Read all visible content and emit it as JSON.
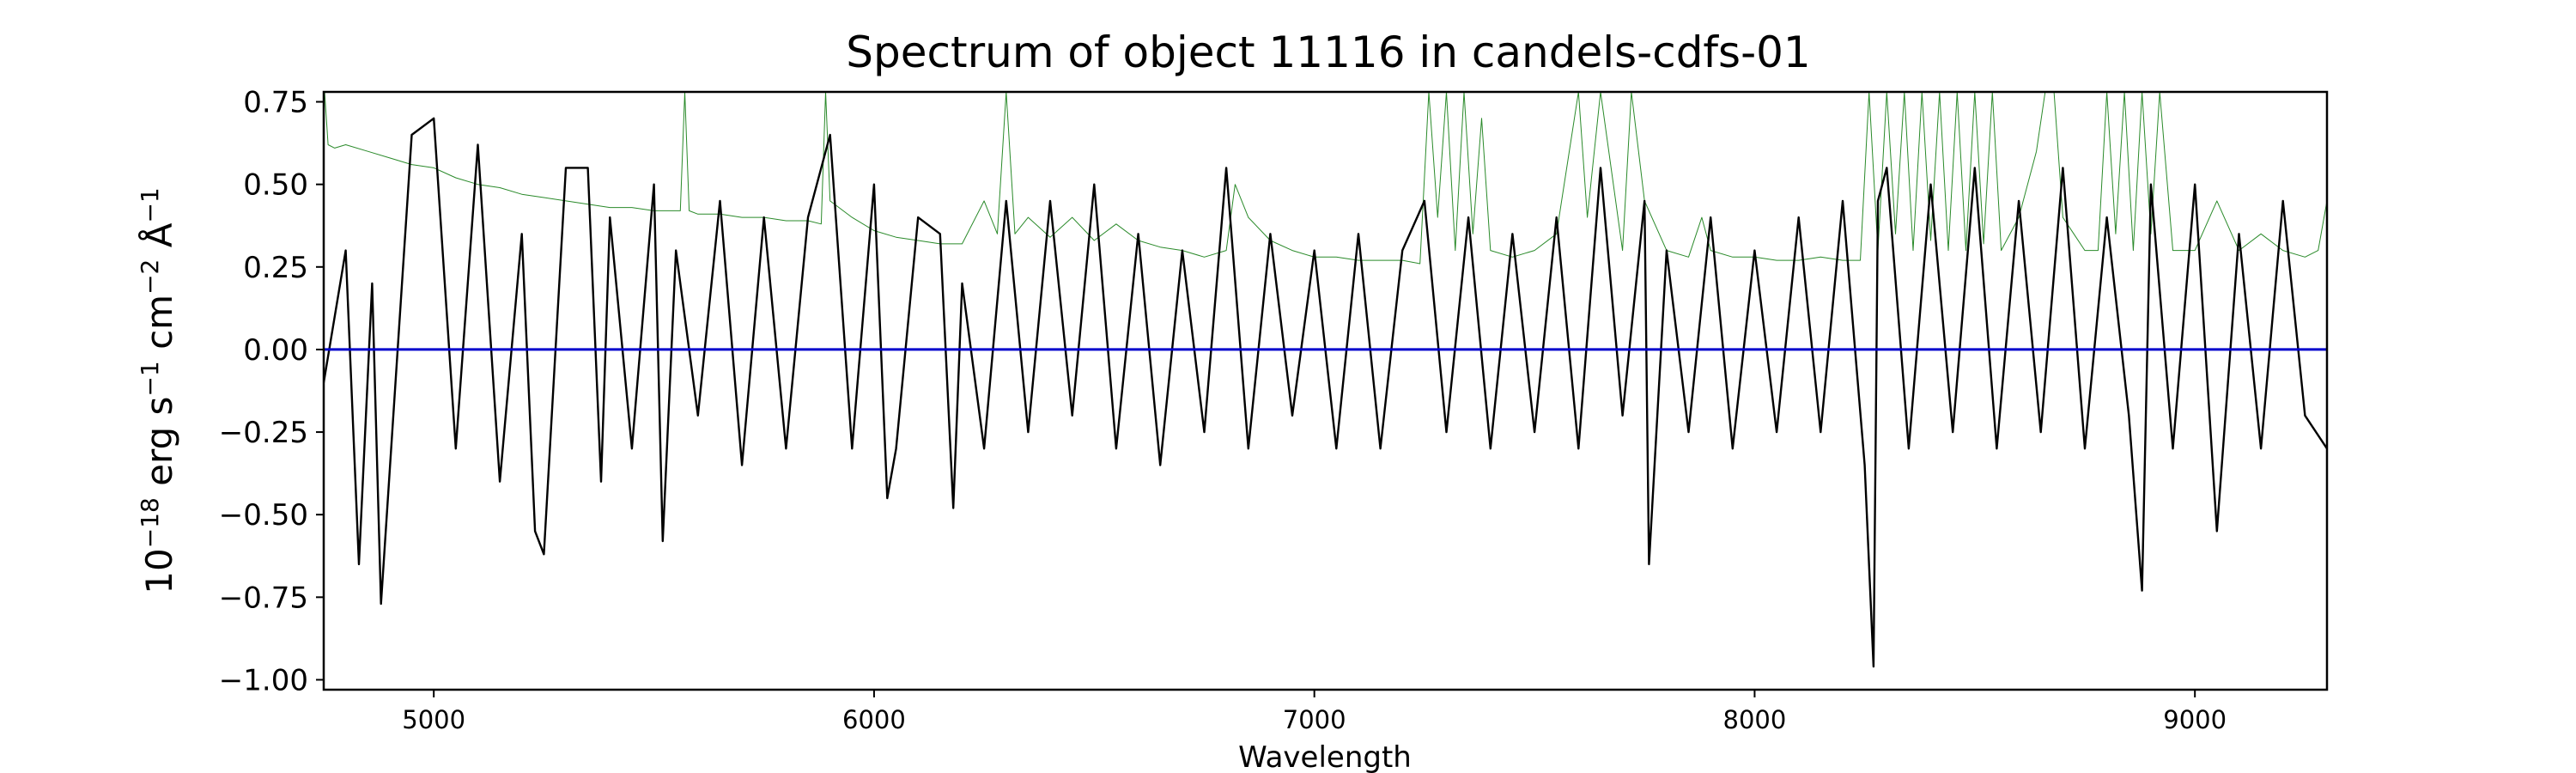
{
  "chart_data": {
    "type": "line",
    "title": "Spectrum of object 11116 in candels-cdfs-01",
    "xlabel": "Wavelength",
    "ylabel": {
      "base": "10",
      "exp1": "−18",
      "unit1": " erg s",
      "exp2": "−1",
      "unit2": " cm",
      "exp3": "−2",
      "unit3": " Å",
      "exp4": "−1"
    },
    "xlim": [
      4750,
      9300
    ],
    "ylim": [
      -1.03,
      0.78
    ],
    "x_ticks": [
      5000,
      6000,
      7000,
      8000,
      9000
    ],
    "x_tick_labels": [
      "5000",
      "6000",
      "7000",
      "8000",
      "9000"
    ],
    "y_ticks": [
      0.75,
      0.5,
      0.25,
      0.0,
      -0.25,
      -0.5,
      -0.75,
      -1.0
    ],
    "y_tick_labels": [
      "0.75",
      "0.50",
      "0.25",
      "0.00",
      "−0.25",
      "−0.50",
      "−0.75",
      "−1.00"
    ],
    "grid": false,
    "series": [
      {
        "color": "#2a8a2a",
        "line_width": 1,
        "x": [
          4750,
          4760,
          4775,
          4800,
          4850,
          4900,
          4950,
          5000,
          5050,
          5100,
          5150,
          5200,
          5250,
          5300,
          5350,
          5400,
          5450,
          5500,
          5560,
          5570,
          5580,
          5600,
          5650,
          5700,
          5750,
          5800,
          5850,
          5880,
          5890,
          5900,
          5950,
          6000,
          6050,
          6100,
          6150,
          6200,
          6250,
          6280,
          6300,
          6320,
          6350,
          6400,
          6450,
          6500,
          6550,
          6600,
          6650,
          6700,
          6750,
          6800,
          6820,
          6850,
          6900,
          6950,
          7000,
          7050,
          7100,
          7150,
          7200,
          7240,
          7260,
          7280,
          7300,
          7320,
          7340,
          7360,
          7380,
          7400,
          7450,
          7500,
          7550,
          7600,
          7620,
          7650,
          7700,
          7720,
          7750,
          7800,
          7850,
          7880,
          7900,
          7950,
          8000,
          8050,
          8100,
          8150,
          8200,
          8240,
          8260,
          8280,
          8300,
          8320,
          8340,
          8360,
          8380,
          8400,
          8420,
          8440,
          8460,
          8480,
          8500,
          8520,
          8540,
          8560,
          8600,
          8640,
          8660,
          8680,
          8700,
          8750,
          8780,
          8800,
          8820,
          8840,
          8860,
          8880,
          8900,
          8920,
          8950,
          9000,
          9050,
          9100,
          9150,
          9200,
          9250,
          9280,
          9300
        ],
        "y": [
          0.82,
          0.62,
          0.61,
          0.62,
          0.6,
          0.58,
          0.56,
          0.55,
          0.52,
          0.5,
          0.49,
          0.47,
          0.46,
          0.45,
          0.44,
          0.43,
          0.43,
          0.42,
          0.42,
          0.78,
          0.42,
          0.41,
          0.41,
          0.4,
          0.4,
          0.39,
          0.39,
          0.38,
          0.78,
          0.45,
          0.4,
          0.36,
          0.34,
          0.33,
          0.32,
          0.32,
          0.45,
          0.35,
          0.78,
          0.35,
          0.4,
          0.34,
          0.4,
          0.33,
          0.38,
          0.33,
          0.31,
          0.3,
          0.28,
          0.3,
          0.5,
          0.4,
          0.33,
          0.3,
          0.28,
          0.28,
          0.27,
          0.27,
          0.27,
          0.26,
          0.78,
          0.4,
          0.78,
          0.3,
          0.78,
          0.35,
          0.7,
          0.3,
          0.28,
          0.3,
          0.35,
          0.78,
          0.4,
          0.78,
          0.3,
          0.78,
          0.45,
          0.3,
          0.28,
          0.4,
          0.3,
          0.28,
          0.28,
          0.27,
          0.27,
          0.28,
          0.27,
          0.27,
          0.78,
          0.3,
          0.78,
          0.35,
          0.78,
          0.3,
          0.78,
          0.33,
          0.78,
          0.3,
          0.78,
          0.3,
          0.78,
          0.32,
          0.78,
          0.3,
          0.4,
          0.6,
          0.78,
          0.78,
          0.4,
          0.3,
          0.3,
          0.78,
          0.35,
          0.78,
          0.3,
          0.78,
          0.35,
          0.78,
          0.3,
          0.3,
          0.45,
          0.3,
          0.35,
          0.3,
          0.28,
          0.3,
          0.45
        ]
      },
      {
        "color": "#000000",
        "line_width": 2.4,
        "x": [
          4750,
          4800,
          4830,
          4860,
          4880,
          4950,
          5000,
          5050,
          5100,
          5150,
          5200,
          5230,
          5250,
          5300,
          5350,
          5380,
          5400,
          5450,
          5500,
          5520,
          5550,
          5600,
          5650,
          5700,
          5750,
          5800,
          5850,
          5900,
          5950,
          6000,
          6030,
          6050,
          6100,
          6150,
          6180,
          6200,
          6250,
          6300,
          6350,
          6400,
          6450,
          6500,
          6550,
          6600,
          6650,
          6700,
          6750,
          6800,
          6850,
          6900,
          6950,
          7000,
          7050,
          7100,
          7150,
          7200,
          7250,
          7300,
          7350,
          7400,
          7450,
          7500,
          7550,
          7600,
          7650,
          7700,
          7750,
          7760,
          7800,
          7850,
          7900,
          7950,
          8000,
          8050,
          8100,
          8150,
          8200,
          8250,
          8270,
          8280,
          8300,
          8350,
          8400,
          8450,
          8500,
          8550,
          8600,
          8650,
          8700,
          8750,
          8800,
          8850,
          8880,
          8900,
          8950,
          9000,
          9050,
          9100,
          9150,
          9200,
          9250,
          9300
        ],
        "y": [
          -0.1,
          0.3,
          -0.65,
          0.2,
          -0.77,
          0.65,
          0.7,
          -0.3,
          0.62,
          -0.4,
          0.35,
          -0.55,
          -0.62,
          0.55,
          0.55,
          -0.4,
          0.4,
          -0.3,
          0.5,
          -0.58,
          0.3,
          -0.2,
          0.45,
          -0.35,
          0.4,
          -0.3,
          0.4,
          0.65,
          -0.3,
          0.5,
          -0.45,
          -0.3,
          0.4,
          0.35,
          -0.48,
          0.2,
          -0.3,
          0.45,
          -0.25,
          0.45,
          -0.2,
          0.5,
          -0.3,
          0.35,
          -0.35,
          0.3,
          -0.25,
          0.55,
          -0.3,
          0.35,
          -0.2,
          0.3,
          -0.3,
          0.35,
          -0.3,
          0.3,
          0.45,
          -0.25,
          0.4,
          -0.3,
          0.35,
          -0.25,
          0.4,
          -0.3,
          0.55,
          -0.2,
          0.45,
          -0.65,
          0.3,
          -0.25,
          0.4,
          -0.3,
          0.3,
          -0.25,
          0.4,
          -0.25,
          0.45,
          -0.35,
          -0.96,
          0.45,
          0.55,
          -0.3,
          0.5,
          -0.25,
          0.55,
          -0.3,
          0.45,
          -0.25,
          0.55,
          -0.3,
          0.4,
          -0.2,
          -0.73,
          0.5,
          -0.3,
          0.5,
          -0.55,
          0.35,
          -0.3,
          0.45,
          -0.2,
          -0.3
        ]
      },
      {
        "color": "#0000cc",
        "line_width": 3,
        "x": [
          4750,
          9300
        ],
        "y": [
          0.0,
          0.0
        ]
      }
    ]
  }
}
